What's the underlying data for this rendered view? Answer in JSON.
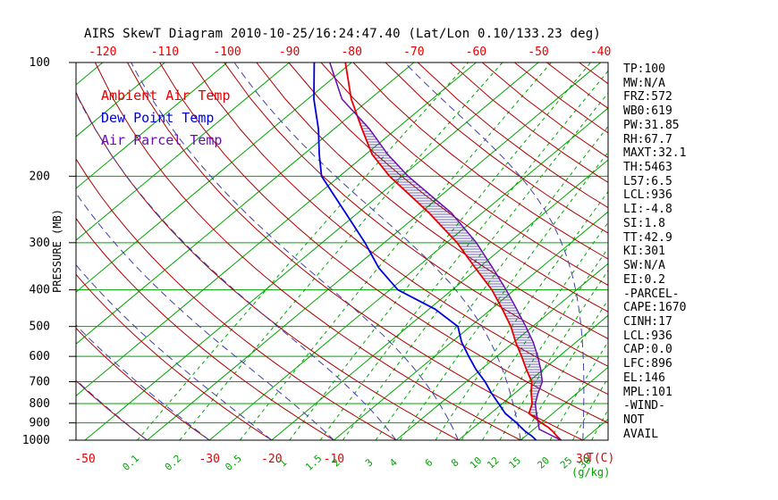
{
  "title": "AIRS SkewT Diagram 2010-10-25/16:24:47.40 (Lat/Lon 0.10/133.23 deg)",
  "legend": {
    "ambient": "Ambient Air Temp",
    "dewpoint": "Dew Point Temp",
    "parcel": "Air Parcel Temp"
  },
  "axes": {
    "y_label": "PRESSURE (MB)",
    "x_label_temp": "T(C)",
    "x_label_mixratio": "(g/kg)",
    "pressure_ticks": [
      100,
      200,
      300,
      400,
      500,
      600,
      700,
      800,
      900,
      1000
    ],
    "top_temp_ticks_c": [
      -120,
      -110,
      -100,
      -90,
      -80,
      -70,
      -60,
      -50,
      -40
    ],
    "bottom_temp_ticks_c": [
      -50,
      -30,
      -20,
      -10,
      30
    ],
    "mixing_ratio_labels_gkg": [
      0.1,
      0.2,
      0.5,
      1,
      1.5,
      2,
      3,
      4,
      6,
      8,
      10,
      12,
      15,
      20,
      25,
      30
    ]
  },
  "stats_panel": [
    "TP:100",
    "MW:N/A",
    "FRZ:572",
    "WB0:619",
    "PW:31.85",
    "RH:67.7",
    "MAXT:32.1",
    "TH:5463",
    "L57:6.5",
    "LCL:936",
    "LI:-4.8",
    "SI:1.8",
    "TT:42.9",
    "KI:301",
    "SW:N/A",
    "EI:0.2",
    "-PARCEL-",
    "CAPE:1670",
    "CINH:17",
    "LCL:936",
    "CAP:0.0",
    "LFC:896",
    "EL:146",
    "MPL:101",
    "-WIND-",
    "NOT",
    "AVAIL"
  ],
  "colors": {
    "isotherm": "#00a400",
    "mixing_ratio": "#00a400",
    "dry_adiabat": "#b00000",
    "moist_adiabat": "#4040a8",
    "ambient": "#e60000",
    "dewpoint": "#0000dd",
    "parcel": "#6a0dad",
    "hatch": "#3d2f96",
    "axis": "#000000",
    "top_labels": "#e00000",
    "bottom_temp_labels": "#e00000",
    "pressure_labels": "#000000"
  },
  "chart_data": {
    "type": "skewt",
    "title": "AIRS SkewT Diagram 2010-10-25/16:24:47.40 (Lat/Lon 0.10/133.23 deg)",
    "pressure_range_mb": [
      100,
      1000
    ],
    "pressure_scale": "log",
    "bottom_temp_range_c": [
      -50,
      35
    ],
    "background_lines": {
      "isotherms_c": {
        "from": -150,
        "to": 40,
        "step": 10
      },
      "dry_adiabats_theta_c": {
        "from": -40,
        "to": 180,
        "step": 10
      },
      "moist_adiabats_start_c": {
        "from": -40,
        "to": 60,
        "step": 10
      },
      "mixing_ratio_gkg": [
        0.1,
        0.2,
        0.5,
        1,
        1.5,
        2,
        3,
        4,
        6,
        8,
        10,
        12,
        15,
        20,
        25,
        30
      ]
    },
    "series": [
      {
        "name": "Ambient Air Temp",
        "color_key": "ambient",
        "points_p_mb_t_c": [
          [
            1000,
            26.5
          ],
          [
            975,
            25.0
          ],
          [
            950,
            23.6
          ],
          [
            925,
            22.0
          ],
          [
            900,
            20.0
          ],
          [
            850,
            16.2
          ],
          [
            800,
            14.8
          ],
          [
            750,
            12.6
          ],
          [
            700,
            10.5
          ],
          [
            650,
            7.3
          ],
          [
            600,
            4.0
          ],
          [
            550,
            0.3
          ],
          [
            500,
            -3.5
          ],
          [
            450,
            -8.2
          ],
          [
            400,
            -13.6
          ],
          [
            350,
            -20.5
          ],
          [
            300,
            -28.3
          ],
          [
            250,
            -38.6
          ],
          [
            200,
            -52.0
          ],
          [
            175,
            -59.0
          ],
          [
            150,
            -65.5
          ],
          [
            125,
            -73.0
          ],
          [
            100,
            -81.0
          ]
        ]
      },
      {
        "name": "Dew Point Temp",
        "color_key": "dewpoint",
        "points_p_mb_t_c": [
          [
            1000,
            22.5
          ],
          [
            975,
            21.0
          ],
          [
            950,
            19.2
          ],
          [
            925,
            17.6
          ],
          [
            900,
            16.0
          ],
          [
            850,
            12.4
          ],
          [
            800,
            9.4
          ],
          [
            750,
            6.2
          ],
          [
            700,
            3.0
          ],
          [
            650,
            -0.8
          ],
          [
            600,
            -4.5
          ],
          [
            550,
            -8.4
          ],
          [
            500,
            -12.0
          ],
          [
            450,
            -19.0
          ],
          [
            400,
            -28.7
          ],
          [
            350,
            -36.0
          ],
          [
            300,
            -43.1
          ],
          [
            250,
            -52.0
          ],
          [
            200,
            -62.9
          ],
          [
            175,
            -67.5
          ],
          [
            150,
            -72.5
          ],
          [
            125,
            -79.0
          ],
          [
            100,
            -86.0
          ]
        ]
      },
      {
        "name": "Air Parcel Temp",
        "color_key": "parcel",
        "points_p_mb_t_c": [
          [
            1000,
            26.5
          ],
          [
            936,
            20.9
          ],
          [
            900,
            19.5
          ],
          [
            850,
            17.4
          ],
          [
            800,
            15.3
          ],
          [
            750,
            13.7
          ],
          [
            700,
            12.2
          ],
          [
            650,
            9.6
          ],
          [
            600,
            6.6
          ],
          [
            550,
            3.1
          ],
          [
            500,
            -1.1
          ],
          [
            450,
            -5.9
          ],
          [
            400,
            -11.3
          ],
          [
            350,
            -17.7
          ],
          [
            300,
            -25.2
          ],
          [
            250,
            -35.0
          ],
          [
            200,
            -49.0
          ],
          [
            175,
            -56.5
          ],
          [
            150,
            -64.3
          ],
          [
            146,
            -65.8
          ],
          [
            125,
            -74.5
          ],
          [
            100,
            -83.5
          ]
        ]
      }
    ],
    "cape_hatch_between": [
      "Air Parcel Temp",
      "Ambient Air Temp"
    ],
    "annotations": {
      "lcl_mb": 936,
      "lfc_mb": 896,
      "el_mb": 146,
      "cape_jkg": 1670,
      "cinh_jkg": 17
    }
  }
}
